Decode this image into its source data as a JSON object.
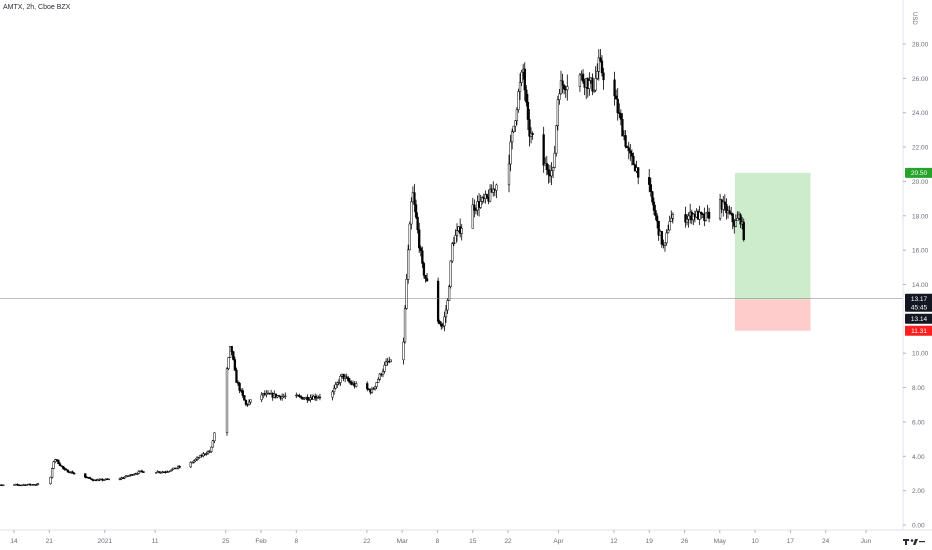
{
  "header": {
    "title": "AMTX, 2h, Cboe BZX"
  },
  "currency": "USD",
  "chart_data": {
    "type": "candlestick",
    "y_ticks": [
      0,
      2,
      4,
      6,
      8,
      10,
      14,
      16,
      18,
      20,
      22,
      24,
      26,
      28
    ],
    "ylim": [
      0,
      28
    ],
    "x_ticks": [
      {
        "label": "14",
        "date": "2020-12-14"
      },
      {
        "label": "21",
        "date": "2020-12-21"
      },
      {
        "label": "2021",
        "date": "2021-01-01"
      },
      {
        "label": "11",
        "date": "2021-01-11"
      },
      {
        "label": "25",
        "date": "2021-01-25"
      },
      {
        "label": "Feb",
        "date": "2021-02-01"
      },
      {
        "label": "8",
        "date": "2021-02-08"
      },
      {
        "label": "22",
        "date": "2021-02-22"
      },
      {
        "label": "Mar",
        "date": "2021-03-01"
      },
      {
        "label": "8",
        "date": "2021-03-08"
      },
      {
        "label": "15",
        "date": "2021-03-15"
      },
      {
        "label": "22",
        "date": "2021-03-22"
      },
      {
        "label": "Apr",
        "date": "2021-04-01"
      },
      {
        "label": "12",
        "date": "2021-04-12"
      },
      {
        "label": "19",
        "date": "2021-04-19"
      },
      {
        "label": "26",
        "date": "2021-04-26"
      },
      {
        "label": "May",
        "date": "2021-05-03"
      },
      {
        "label": "10",
        "date": "2021-05-10"
      },
      {
        "label": "17",
        "date": "2021-05-17"
      },
      {
        "label": "24",
        "date": "2021-05-24"
      },
      {
        "label": "Jun",
        "date": "2021-06-01"
      }
    ],
    "price_path": [
      [
        "2020-12-10",
        2.3
      ],
      [
        "2020-12-17",
        2.35
      ],
      [
        "2020-12-21",
        2.4
      ],
      [
        "2020-12-22",
        3.9
      ],
      [
        "2020-12-24",
        3.2
      ],
      [
        "2020-12-30",
        2.6
      ],
      [
        "2021-01-04",
        2.7
      ],
      [
        "2021-01-08",
        3.1
      ],
      [
        "2021-01-13",
        3.1
      ],
      [
        "2021-01-18",
        3.6
      ],
      [
        "2021-01-21",
        4.2
      ],
      [
        "2021-01-22",
        4.3
      ],
      [
        "2021-01-25",
        8.5
      ],
      [
        "2021-01-26",
        10.5
      ],
      [
        "2021-01-27",
        8.5
      ],
      [
        "2021-01-29",
        7.0
      ],
      [
        "2021-02-01",
        7.6
      ],
      [
        "2021-02-05",
        7.5
      ],
      [
        "2021-02-10",
        7.4
      ],
      [
        "2021-02-15",
        7.6
      ],
      [
        "2021-02-17",
        8.7
      ],
      [
        "2021-02-19",
        8.2
      ],
      [
        "2021-02-23",
        7.8
      ],
      [
        "2021-02-26",
        9.5
      ],
      [
        "2021-03-01",
        9.3
      ],
      [
        "2021-03-02",
        15.0
      ],
      [
        "2021-03-03",
        19.5
      ],
      [
        "2021-03-05",
        15.0
      ],
      [
        "2021-03-08",
        12.0
      ],
      [
        "2021-03-09",
        11.5
      ],
      [
        "2021-03-10",
        13.0
      ],
      [
        "2021-03-11",
        16.5
      ],
      [
        "2021-03-15",
        18.5
      ],
      [
        "2021-03-18",
        19.0
      ],
      [
        "2021-03-22",
        21.0
      ],
      [
        "2021-03-24",
        25.0
      ],
      [
        "2021-03-25",
        26.5
      ],
      [
        "2021-03-26",
        23.0
      ],
      [
        "2021-03-29",
        21.0
      ],
      [
        "2021-03-31",
        20.5
      ],
      [
        "2021-04-01",
        25.5
      ],
      [
        "2021-04-05",
        26.2
      ],
      [
        "2021-04-08",
        25.5
      ],
      [
        "2021-04-09",
        26.8
      ],
      [
        "2021-04-12",
        25.0
      ],
      [
        "2021-04-15",
        21.5
      ],
      [
        "2021-04-19",
        19.5
      ],
      [
        "2021-04-21",
        17.0
      ],
      [
        "2021-04-22",
        16.0
      ],
      [
        "2021-04-23",
        17.8
      ],
      [
        "2021-04-26",
        17.9
      ],
      [
        "2021-04-28",
        18.1
      ],
      [
        "2021-04-30",
        17.8
      ],
      [
        "2021-05-03",
        18.8
      ],
      [
        "2021-05-05",
        18.0
      ],
      [
        "2021-05-06",
        17.5
      ],
      [
        "2021-05-07",
        18.0
      ],
      [
        "2021-05-08",
        16.5
      ],
      [
        "2021-05-09",
        14.5
      ],
      [
        "2021-05-10",
        13.17
      ]
    ],
    "current_price": {
      "value": 13.17,
      "label": "13.17",
      "countdown": "45:45"
    },
    "position": {
      "entry": {
        "value": 13.14,
        "label": "13.14"
      },
      "target": {
        "value": 20.5,
        "label": "20.50"
      },
      "stop": {
        "value": 11.31,
        "label": "11.31"
      },
      "start_date": "2021-05-06",
      "end_date": "2021-05-21"
    },
    "colors": {
      "candle": "#000000",
      "profit_zone": "#cdeccb",
      "loss_zone": "#ffcccc",
      "target_badge": "#26a32a",
      "stop_badge": "#ff1f1f",
      "price_badge": "#131722",
      "price_line": "#787b86"
    }
  }
}
